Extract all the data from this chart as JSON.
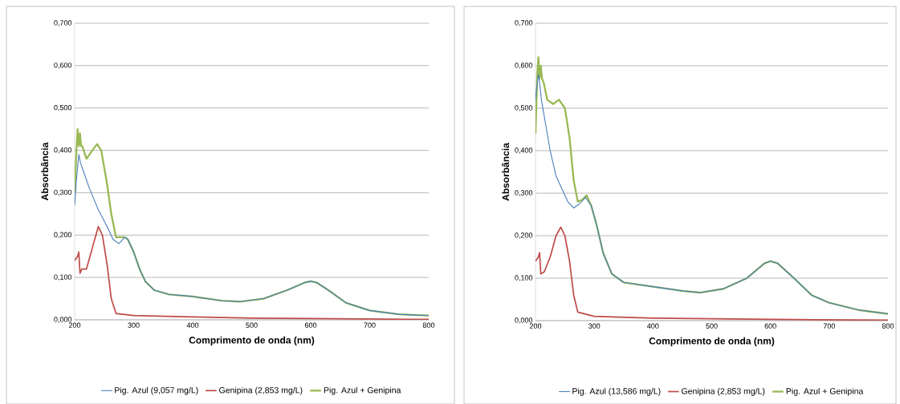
{
  "chart_data": [
    {
      "type": "line",
      "xlabel": "Comprimento de onda (nm)",
      "ylabel": "Absorbância",
      "xlim": [
        200,
        800
      ],
      "ylim": [
        0,
        0.7
      ],
      "xticks": [
        200,
        300,
        400,
        500,
        600,
        700,
        800
      ],
      "yticks": [
        {
          "value": 0,
          "label": "0,000"
        },
        {
          "value": 0.1,
          "label": "0,100"
        },
        {
          "value": 0.2,
          "label": "0,200"
        },
        {
          "value": 0.3,
          "label": "0,300"
        },
        {
          "value": 0.4,
          "label": "0,400"
        },
        {
          "value": 0.5,
          "label": "0,500"
        },
        {
          "value": 0.6,
          "label": "0,600"
        },
        {
          "value": 0.7,
          "label": "0,700"
        }
      ],
      "grid": "y",
      "legend": "bottom",
      "marker": "none",
      "line_style": "solid",
      "series": [
        {
          "name": "Pig. Azul (9,057 mg/L)",
          "color": "#4a7ebb",
          "x": [
            200,
            203,
            207,
            210,
            215,
            225,
            240,
            255,
            265,
            275,
            285,
            290,
            300,
            310,
            320,
            335,
            360,
            400,
            450,
            480,
            520,
            560,
            590,
            600,
            610,
            630,
            660,
            700,
            750,
            800
          ],
          "values": [
            0.27,
            0.33,
            0.39,
            0.37,
            0.35,
            0.31,
            0.26,
            0.22,
            0.19,
            0.18,
            0.195,
            0.19,
            0.16,
            0.12,
            0.09,
            0.07,
            0.06,
            0.055,
            0.045,
            0.043,
            0.05,
            0.07,
            0.088,
            0.091,
            0.088,
            0.07,
            0.04,
            0.022,
            0.013,
            0.01
          ]
        },
        {
          "name": "Genipina (2,853 mg/L)",
          "color": "#be4b48",
          "x": [
            200,
            205,
            207,
            209,
            212,
            220,
            230,
            240,
            247,
            255,
            262,
            270,
            300,
            400,
            500,
            600,
            800
          ],
          "values": [
            0.14,
            0.15,
            0.16,
            0.11,
            0.12,
            0.12,
            0.17,
            0.22,
            0.2,
            0.13,
            0.05,
            0.015,
            0.01,
            0.007,
            0.004,
            0.003,
            0.001
          ]
        },
        {
          "name": "Pig. Azul + Genipina",
          "color": "#98b954",
          "x": [
            200,
            203,
            205,
            207,
            209,
            211,
            213,
            220,
            230,
            238,
            245,
            255,
            262,
            270,
            285,
            290,
            300,
            310,
            320,
            335,
            360,
            400,
            450,
            480,
            520,
            560,
            590,
            600,
            610,
            630,
            660,
            700,
            750,
            800
          ],
          "values": [
            0.3,
            0.4,
            0.45,
            0.41,
            0.44,
            0.41,
            0.41,
            0.38,
            0.4,
            0.415,
            0.4,
            0.32,
            0.25,
            0.195,
            0.195,
            0.19,
            0.16,
            0.12,
            0.09,
            0.07,
            0.06,
            0.055,
            0.045,
            0.043,
            0.05,
            0.07,
            0.088,
            0.091,
            0.088,
            0.07,
            0.04,
            0.022,
            0.013,
            0.01
          ]
        }
      ]
    },
    {
      "type": "line",
      "xlabel": "Comprimento de onda (nm)",
      "ylabel": "Absorbância",
      "xlim": [
        200,
        800
      ],
      "ylim": [
        0,
        0.7
      ],
      "xticks": [
        200,
        300,
        400,
        500,
        600,
        700,
        800
      ],
      "yticks": [
        {
          "value": 0,
          "label": "0,000"
        },
        {
          "value": 0.1,
          "label": "0,100"
        },
        {
          "value": 0.2,
          "label": "0,200"
        },
        {
          "value": 0.3,
          "label": "0,300"
        },
        {
          "value": 0.4,
          "label": "0,400"
        },
        {
          "value": 0.5,
          "label": "0,500"
        },
        {
          "value": 0.6,
          "label": "0,600"
        },
        {
          "value": 0.7,
          "label": "0,700"
        }
      ],
      "grid": "y",
      "legend": "bottom",
      "marker": "none",
      "line_style": "solid",
      "series": [
        {
          "name": "Pig. Azul (13,586 mg/L)",
          "color": "#4a7ebb",
          "x": [
            200,
            202,
            205,
            207,
            210,
            215,
            225,
            235,
            245,
            255,
            265,
            275,
            285,
            295,
            305,
            315,
            330,
            350,
            400,
            450,
            480,
            520,
            560,
            590,
            600,
            612,
            640,
            670,
            700,
            750,
            800
          ],
          "values": [
            0.52,
            0.55,
            0.58,
            0.56,
            0.52,
            0.48,
            0.4,
            0.34,
            0.31,
            0.28,
            0.265,
            0.275,
            0.29,
            0.27,
            0.22,
            0.16,
            0.11,
            0.09,
            0.08,
            0.07,
            0.066,
            0.075,
            0.1,
            0.135,
            0.14,
            0.135,
            0.1,
            0.06,
            0.042,
            0.025,
            0.016
          ]
        },
        {
          "name": "Genipina (2,853 mg/L)",
          "color": "#be4b48",
          "x": [
            200,
            205,
            207,
            209,
            215,
            225,
            235,
            243,
            250,
            258,
            265,
            272,
            300,
            400,
            600,
            800
          ],
          "values": [
            0.14,
            0.15,
            0.16,
            0.11,
            0.115,
            0.15,
            0.2,
            0.22,
            0.2,
            0.14,
            0.06,
            0.02,
            0.01,
            0.006,
            0.003,
            0.001
          ]
        },
        {
          "name": "Pig. Azul + Genipina",
          "color": "#98b954",
          "x": [
            200,
            203,
            205,
            207,
            209,
            211,
            214,
            220,
            230,
            240,
            250,
            258,
            265,
            272,
            280,
            287,
            295,
            305,
            315,
            330,
            350,
            400,
            450,
            480,
            520,
            560,
            590,
            600,
            612,
            640,
            670,
            700,
            750,
            800
          ],
          "values": [
            0.44,
            0.58,
            0.62,
            0.57,
            0.6,
            0.57,
            0.56,
            0.52,
            0.51,
            0.52,
            0.5,
            0.43,
            0.33,
            0.28,
            0.285,
            0.295,
            0.27,
            0.22,
            0.16,
            0.11,
            0.09,
            0.08,
            0.07,
            0.066,
            0.075,
            0.1,
            0.135,
            0.14,
            0.135,
            0.1,
            0.06,
            0.042,
            0.025,
            0.016
          ]
        }
      ]
    }
  ]
}
